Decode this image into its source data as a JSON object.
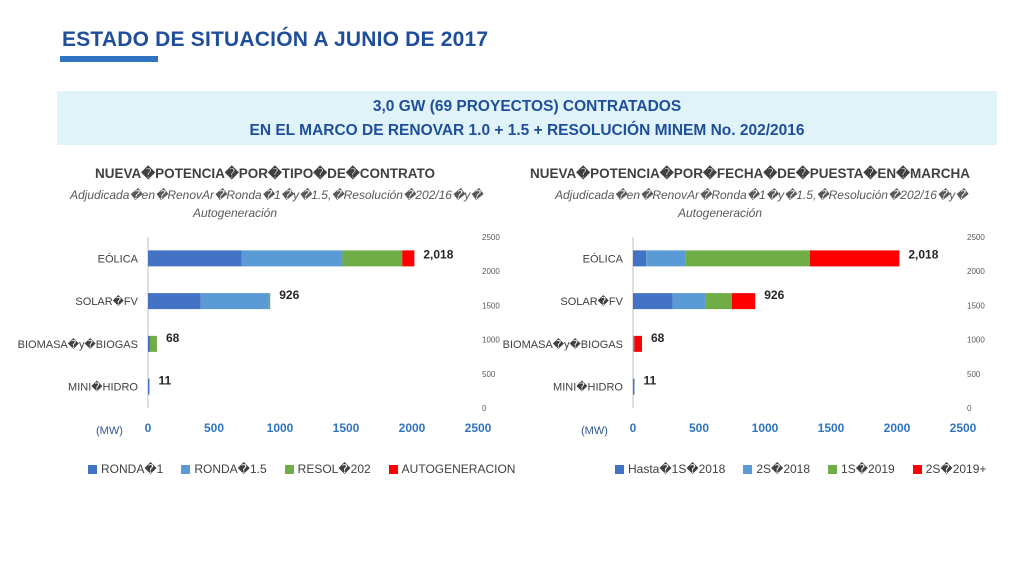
{
  "header": {
    "title": "ESTADO DE SITUACIÓN A JUNIO DE 2017",
    "banner_line1": "3,0 GW (69 PROYECTOS) CONTRATADOS",
    "banner_line2": "EN EL MARCO DE RENOVAR 1.0 + 1.5 + RESOLUCIÓN MINEM No. 202/2016"
  },
  "colors": {
    "title": "#1f4e9b",
    "banner_bg": "#dff3f8",
    "series": [
      "#4472c4",
      "#5b9bd5",
      "#70ad47",
      "#ff0000"
    ]
  },
  "chart_data": [
    {
      "type": "bar",
      "orientation": "horizontal",
      "stacked": true,
      "title": "NUEVA�POTENCIA�POR�TIPO�DE�CONTRATO",
      "subtitle_line1": "Adjudicada�en�RenovAr�Ronda�1�y�1.5,�Resolución�202/16�y�",
      "subtitle_line2": "Autogeneración",
      "unit_label": "(MW)",
      "categories": [
        "EÓLICA",
        "SOLAR�FV",
        "BIOMASA�y�BIOGAS",
        "MINI�HIDRO"
      ],
      "totals": [
        "2,018",
        "926",
        "68",
        "11"
      ],
      "series": [
        {
          "name": "RONDA�1",
          "values": [
            708,
            400,
            15,
            11
          ]
        },
        {
          "name": "RONDA�1.5",
          "values": [
            765,
            516,
            0,
            0
          ]
        },
        {
          "name": "RESOL�202",
          "values": [
            453,
            10,
            53,
            0
          ]
        },
        {
          "name": "AUTOGENERACION",
          "values": [
            92,
            0,
            0,
            0
          ]
        }
      ],
      "xlim": [
        0,
        2500
      ],
      "xticks": [
        "0",
        "500",
        "1000",
        "1500",
        "2000",
        "2500"
      ],
      "secondary_ticks": [
        "0",
        "500",
        "1000",
        "1500",
        "2000",
        "2500"
      ],
      "legend_position": "bottom"
    },
    {
      "type": "bar",
      "orientation": "horizontal",
      "stacked": true,
      "title": "NUEVA�POTENCIA�POR�FECHA�DE�PUESTA�EN�MARCHA",
      "subtitle_line1": "Adjudicada�en�RenovAr�Ronda�1�y�1.5,�Resolución�202/16�y�",
      "subtitle_line2": "Autogeneración",
      "unit_label": "(MW)",
      "categories": [
        "EÓLICA",
        "SOLAR�FV",
        "BIOMASA�y�BIOGAS",
        "MINI�HIDRO"
      ],
      "totals": [
        "2,018",
        "926",
        "68",
        "11"
      ],
      "series": [
        {
          "name": "Hasta�1S�2018",
          "values": [
            100,
            300,
            0,
            11
          ]
        },
        {
          "name": "2S�2018",
          "values": [
            300,
            250,
            10,
            0
          ]
        },
        {
          "name": "1S�2019",
          "values": [
            940,
            200,
            0,
            0
          ]
        },
        {
          "name": "2S�2019+",
          "values": [
            678,
            176,
            58,
            0
          ]
        }
      ],
      "xlim": [
        0,
        2500
      ],
      "xticks": [
        "0",
        "500",
        "1000",
        "1500",
        "2000",
        "2500"
      ],
      "secondary_ticks": [
        "0",
        "500",
        "1000",
        "1500",
        "2000",
        "2500"
      ],
      "legend_position": "bottom"
    }
  ]
}
